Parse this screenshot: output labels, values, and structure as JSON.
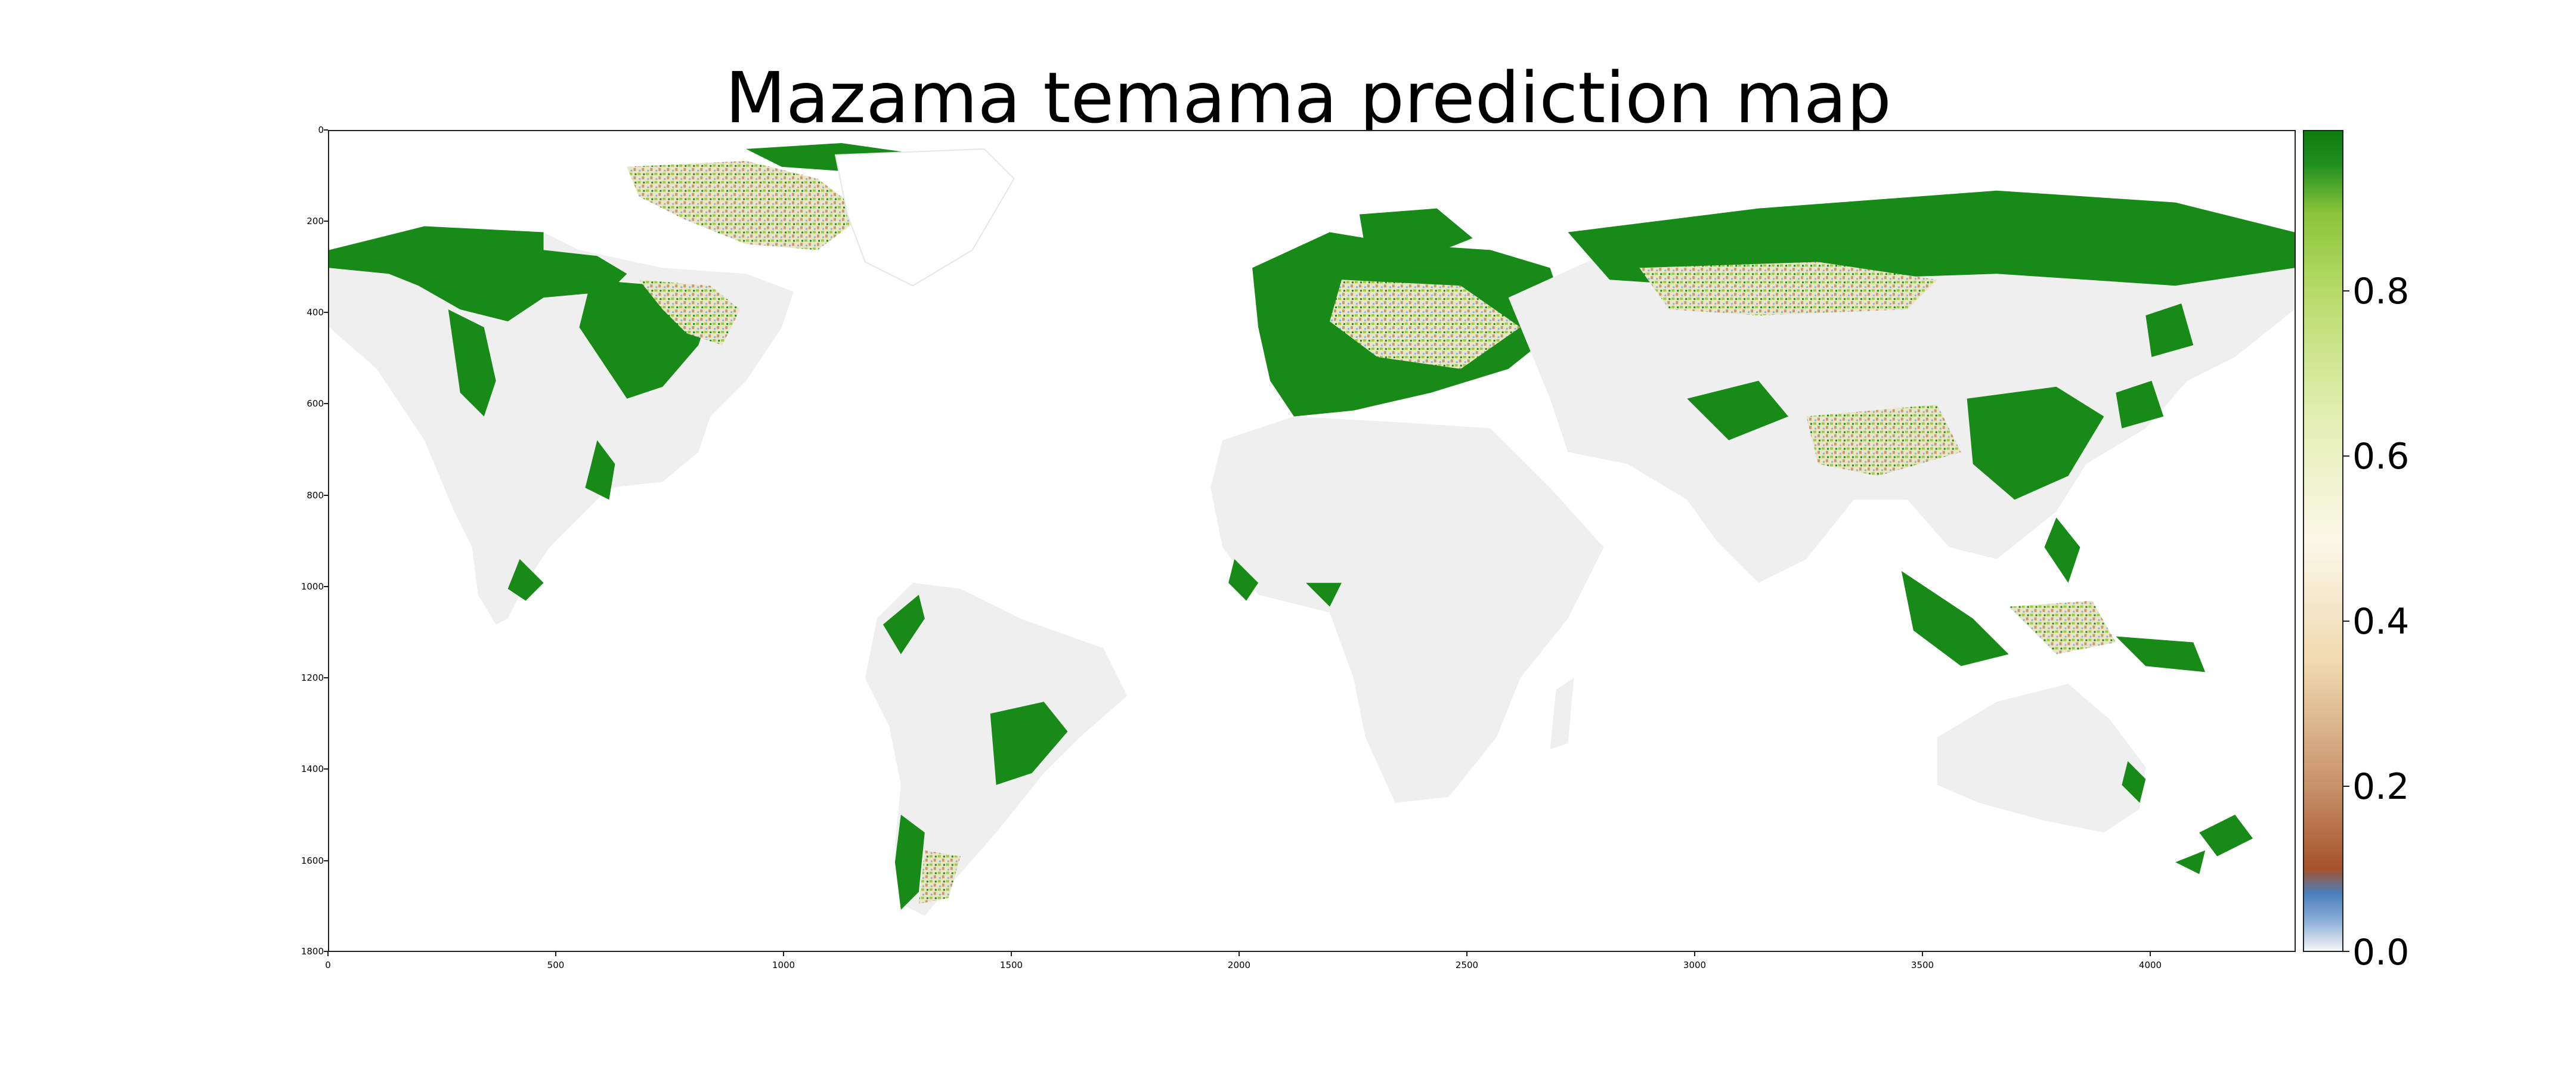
{
  "title": "Mazama temama prediction map",
  "chart_data": {
    "type": "heatmap",
    "title": "Mazama temama prediction map",
    "x_ticks": [
      "0",
      "500",
      "1000",
      "1500",
      "2000",
      "2500",
      "3000",
      "3500",
      "4000"
    ],
    "x_tick_values": [
      0,
      500,
      1000,
      1500,
      2000,
      2500,
      3000,
      3500,
      4000
    ],
    "y_ticks": [
      "0",
      "200",
      "400",
      "600",
      "800",
      "1000",
      "1200",
      "1400",
      "1600",
      "1800"
    ],
    "y_tick_values": [
      0,
      200,
      400,
      600,
      800,
      1000,
      1200,
      1400,
      1600,
      1800
    ],
    "xlim": [
      0,
      4320
    ],
    "ylim": [
      1800,
      0
    ],
    "colorbar": {
      "range": [
        0.0,
        1.0
      ],
      "ticks": [
        "0.0",
        "0.2",
        "0.4",
        "0.6",
        "0.8"
      ],
      "tick_values": [
        0.0,
        0.2,
        0.4,
        0.6,
        0.8
      ]
    },
    "colors": {
      "land_zero": "#efefef",
      "high": "#178a17",
      "mid_high": "#9ccc3c",
      "mid": "#f5f1d8",
      "low": "#a85a32",
      "very_low": "#5b8fc7"
    }
  }
}
